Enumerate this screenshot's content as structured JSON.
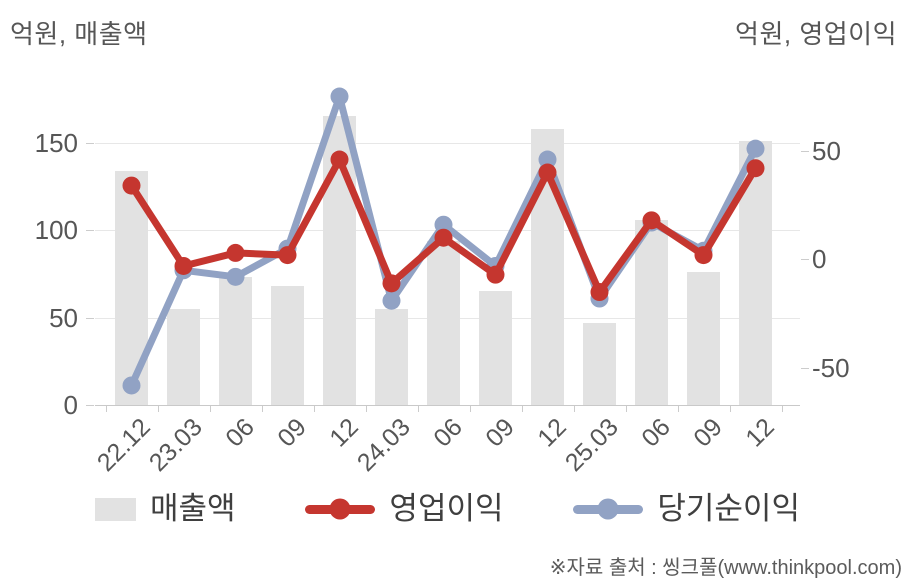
{
  "titles": {
    "left": "억원, 매출액",
    "right": "억원, 영업이익"
  },
  "source_note": "※자료 출처 : 씽크풀(www.thinkpool.com)",
  "legend": {
    "revenue_label": "매출액",
    "operating_profit_label": "영업이익",
    "net_profit_label": "당기순이익"
  },
  "colors": {
    "bar": "#e2e2e2",
    "operating_profit": "#c5362f",
    "net_profit": "#91a2c4",
    "grid": "#e7e7e7",
    "axis_line": "#c9c9c9",
    "text": "#565656"
  },
  "chart_data": {
    "type": "bar",
    "subtype": "combo bar+line, dual axis",
    "categories": [
      "22.12",
      "23.03",
      "06",
      "09",
      "12",
      "24.03",
      "06",
      "09",
      "12",
      "25.03",
      "06",
      "09",
      "12"
    ],
    "series": [
      {
        "name": "매출액",
        "type": "bar",
        "axis": "left",
        "values": [
          134,
          55,
          73,
          68,
          165,
          55,
          94,
          65,
          158,
          47,
          106,
          76,
          151
        ]
      },
      {
        "name": "영업이익",
        "type": "line",
        "axis": "right",
        "values": [
          34,
          -3,
          3,
          2,
          46,
          -11,
          10,
          -7,
          40,
          -15,
          18,
          2,
          42
        ]
      },
      {
        "name": "당기순이익",
        "type": "line",
        "axis": "right",
        "values": [
          -58,
          -5,
          -8,
          5,
          75,
          -19,
          16,
          -3,
          46,
          -18,
          17,
          4,
          51
        ]
      }
    ],
    "left_axis": {
      "title": "억원, 매출액",
      "ticks": [
        0,
        50,
        100,
        150
      ],
      "range": [
        0,
        180
      ]
    },
    "right_axis": {
      "title": "억원, 영업이익",
      "ticks": [
        -50,
        0,
        50
      ],
      "range": [
        -67,
        78
      ]
    },
    "grid": "horizontal lines at left-axis ticks 50/100/150",
    "legend_position": "bottom"
  }
}
